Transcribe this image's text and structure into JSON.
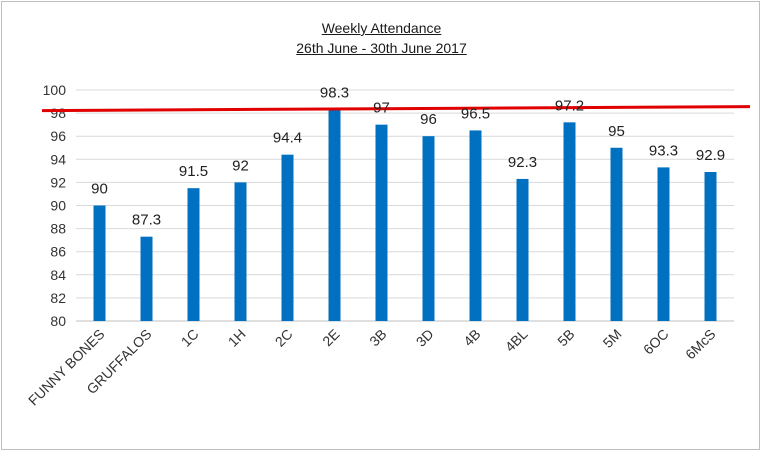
{
  "chart_data": {
    "type": "bar",
    "title": "Weekly Attendance",
    "subtitle": "26th June - 30th June 2017",
    "xlabel": "",
    "ylabel": "",
    "ylim": [
      80,
      100
    ],
    "yticks": [
      80,
      82,
      84,
      86,
      88,
      90,
      92,
      94,
      96,
      98,
      100
    ],
    "grid": true,
    "legend": "none",
    "categories": [
      "FUNNY BONES",
      "GRUFFALOS",
      "1C",
      "1H",
      "2C",
      "2E",
      "3B",
      "3D",
      "4B",
      "4BL",
      "5B",
      "5M",
      "6OC",
      "6McS"
    ],
    "series": [
      {
        "values": [
          90,
          87.3,
          91.5,
          92,
          94.4,
          98.3,
          97,
          96,
          96.5,
          92.3,
          97.2,
          95,
          93.3,
          92.9
        ],
        "color": "#0070c0"
      }
    ],
    "data_labels": [
      "90",
      "87.3",
      "91.5",
      "92",
      "94.4",
      "98.3",
      "97",
      "96",
      "96.5",
      "92.3",
      "97.2",
      "95",
      "93.3",
      "92.9"
    ],
    "target_line": {
      "value": 98.3,
      "color": "#e00000"
    }
  }
}
